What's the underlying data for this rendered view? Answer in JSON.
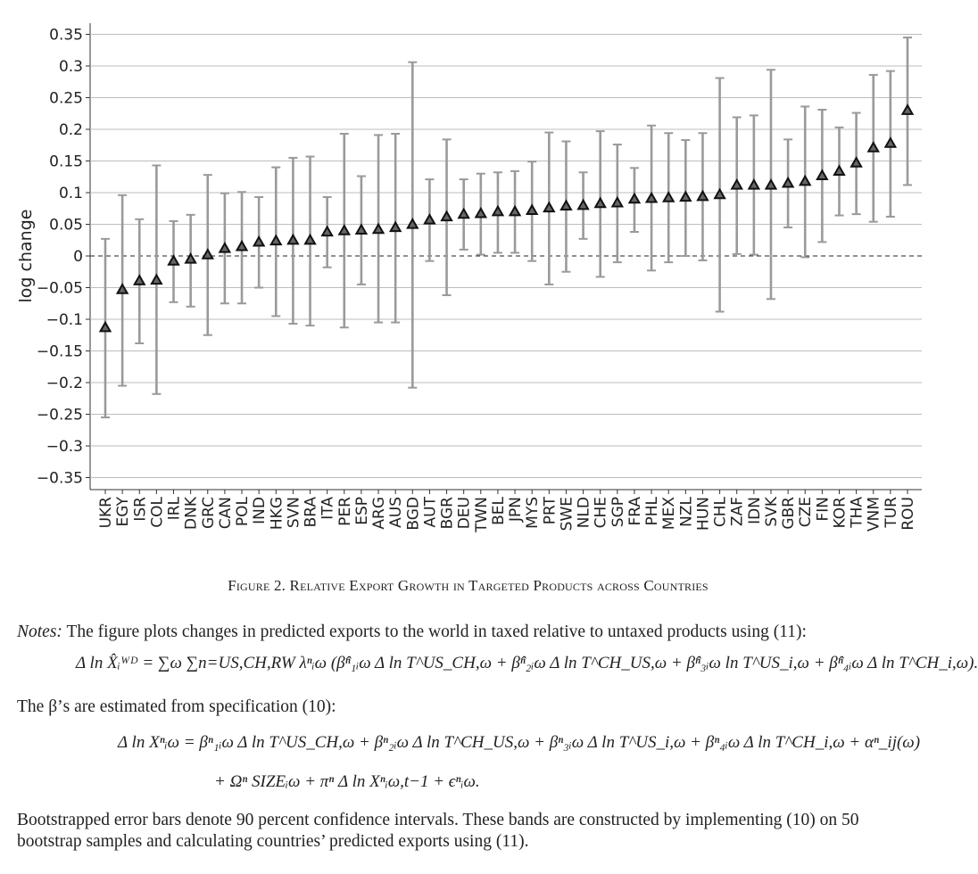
{
  "chart_data": {
    "type": "scatter",
    "ylabel": "log change",
    "ylim": [
      -0.37,
      0.37
    ],
    "yticks": [
      0.35,
      0.3,
      0.25,
      0.2,
      0.15,
      0.1,
      0.05,
      0,
      -0.05,
      -0.1,
      -0.15,
      -0.2,
      -0.25,
      -0.3,
      -0.35
    ],
    "yticklabels": [
      "0.35",
      "0.3",
      "0.25",
      "0.2",
      "0.15",
      "0.1",
      "0.05",
      "0",
      "−0.05",
      "−0.1",
      "−0.15",
      "−0.2",
      "−0.25",
      "−0.3",
      "−0.35"
    ],
    "grid": "horizontal",
    "reference_line": 0,
    "categories": [
      "UKR",
      "EGY",
      "ISR",
      "COL",
      "IRL",
      "DNK",
      "GRC",
      "CAN",
      "POL",
      "IND",
      "HKG",
      "SVN",
      "BRA",
      "ITA",
      "PER",
      "ESP",
      "ARG",
      "AUS",
      "BGD",
      "AUT",
      "BGR",
      "DEU",
      "TWN",
      "BEL",
      "JPN",
      "MYS",
      "PRT",
      "SWE",
      "NLD",
      "CHE",
      "SGP",
      "FRA",
      "PHL",
      "MEX",
      "NZL",
      "HUN",
      "CHL",
      "ZAF",
      "IDN",
      "SVK",
      "GBR",
      "CZE",
      "FIN",
      "KOR",
      "THA",
      "VNM",
      "TUR",
      "ROU"
    ],
    "values": [
      -0.113,
      -0.053,
      -0.039,
      -0.038,
      -0.008,
      -0.005,
      0.002,
      0.012,
      0.015,
      0.022,
      0.024,
      0.025,
      0.025,
      0.038,
      0.04,
      0.041,
      0.042,
      0.045,
      0.05,
      0.057,
      0.062,
      0.066,
      0.067,
      0.07,
      0.07,
      0.072,
      0.076,
      0.079,
      0.08,
      0.083,
      0.084,
      0.09,
      0.091,
      0.092,
      0.093,
      0.094,
      0.097,
      0.112,
      0.112,
      0.112,
      0.115,
      0.118,
      0.127,
      0.134,
      0.147,
      0.171,
      0.178,
      0.23
    ],
    "lower": [
      -0.255,
      -0.205,
      -0.138,
      -0.218,
      -0.073,
      -0.08,
      -0.125,
      -0.075,
      -0.075,
      -0.05,
      -0.095,
      -0.107,
      -0.11,
      -0.018,
      -0.113,
      -0.045,
      -0.105,
      -0.105,
      -0.208,
      -0.008,
      -0.062,
      0.01,
      0.002,
      0.005,
      0.005,
      -0.008,
      -0.045,
      -0.025,
      0.027,
      -0.033,
      -0.01,
      0.038,
      -0.023,
      -0.01,
      0.0,
      -0.007,
      -0.088,
      0.003,
      0.002,
      -0.068,
      0.045,
      -0.002,
      0.022,
      0.064,
      0.066,
      0.054,
      0.062,
      0.112
    ],
    "upper": [
      0.027,
      0.096,
      0.058,
      0.143,
      0.055,
      0.065,
      0.128,
      0.099,
      0.101,
      0.093,
      0.14,
      0.155,
      0.157,
      0.093,
      0.193,
      0.126,
      0.191,
      0.193,
      0.306,
      0.121,
      0.184,
      0.121,
      0.13,
      0.132,
      0.134,
      0.149,
      0.195,
      0.181,
      0.132,
      0.197,
      0.176,
      0.139,
      0.206,
      0.194,
      0.183,
      0.194,
      0.281,
      0.219,
      0.222,
      0.294,
      0.184,
      0.236,
      0.231,
      0.203,
      0.226,
      0.286,
      0.292,
      0.345
    ]
  },
  "caption": "Figure 2. Relative Export Growth in Targeted Products across Countries",
  "notes": {
    "label": "Notes:",
    "line1": "The figure plots changes in predicted exports to the world in taxed relative to untaxed products using (11):",
    "line2": "The β’s are estimated from specification (10):",
    "line3": "Bootstrapped error bars denote 90 percent confidence intervals. These bands are constructed by implementing (10) on 50 bootstrap samples and calculating countries’ predicted exports using (11)."
  },
  "equations": {
    "eq1": "Δ ln X̂ᵢᵂᴰ = ∑ω ∑n=US,CH,RW λⁿᵢω (β̂ⁿ₁ᵢω Δ ln T^US_CH,ω + β̂ⁿ₂ᵢω Δ ln T^CH_US,ω + β̂ⁿ₃ᵢω ln T^US_i,ω + β̂ⁿ₄ᵢω Δ ln T^CH_i,ω).",
    "eq2a": "Δ ln Xⁿᵢω = βⁿ₁ᵢω Δ ln T^US_CH,ω + βⁿ₂ᵢω Δ ln T^CH_US,ω + βⁿ₃ᵢω Δ ln T^US_i,ω + βⁿ₄ᵢω Δ ln T^CH_i,ω + αⁿ_ij(ω)",
    "eq2b": "+ Ωⁿ SIZEᵢω + πⁿ Δ ln Xⁿᵢω,t−1 + ϵⁿᵢω."
  }
}
